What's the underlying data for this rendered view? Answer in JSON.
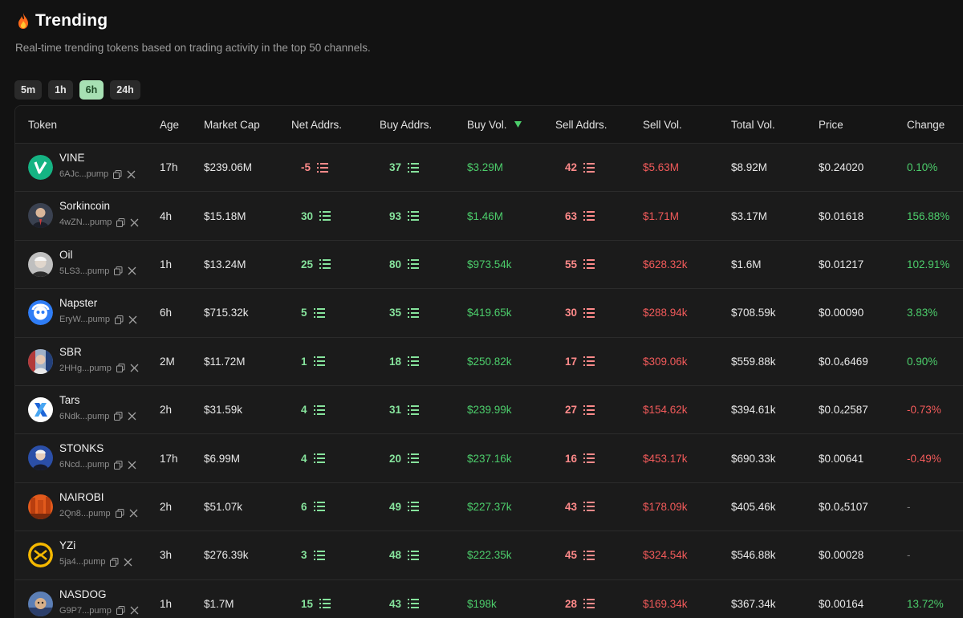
{
  "header": {
    "title": "Trending",
    "subtitle": "Real-time trending tokens based on trading activity in the top 50 channels."
  },
  "timeframes": [
    "5m",
    "1h",
    "6h",
    "24h"
  ],
  "active_timeframe": "6h",
  "columns": {
    "token": "Token",
    "age": "Age",
    "market_cap": "Market Cap",
    "net_addrs": "Net Addrs.",
    "buy_addrs": "Buy Addrs.",
    "buy_vol": "Buy Vol.",
    "sell_addrs": "Sell Addrs.",
    "sell_vol": "Sell Vol.",
    "total_vol": "Total Vol.",
    "price": "Price",
    "change": "Change"
  },
  "rows": [
    {
      "name": "VINE",
      "addr": "6AJc...pump",
      "age": "17h",
      "mcap": "$239.06M",
      "net": "-5",
      "net_neg": true,
      "buy_addrs": "37",
      "buy_vol": "$3.29M",
      "sell_addrs": "42",
      "sell_vol": "$5.63M",
      "total_vol": "$8.92M",
      "price": "$0.24020",
      "change": "0.10%",
      "change_dir": "up",
      "logo": "vine"
    },
    {
      "name": "Sorkincoin",
      "addr": "4wZN...pump",
      "age": "4h",
      "mcap": "$15.18M",
      "net": "30",
      "net_neg": false,
      "buy_addrs": "93",
      "buy_vol": "$1.46M",
      "sell_addrs": "63",
      "sell_vol": "$1.71M",
      "total_vol": "$3.17M",
      "price": "$0.01618",
      "change": "156.88%",
      "change_dir": "up",
      "logo": "person-dark"
    },
    {
      "name": "Oil",
      "addr": "5LS3...pump",
      "age": "1h",
      "mcap": "$13.24M",
      "net": "25",
      "net_neg": false,
      "buy_addrs": "80",
      "buy_vol": "$973.54k",
      "sell_addrs": "55",
      "sell_vol": "$628.32k",
      "total_vol": "$1.6M",
      "price": "$0.01217",
      "change": "102.91%",
      "change_dir": "up",
      "logo": "person-gray"
    },
    {
      "name": "Napster",
      "addr": "EryW...pump",
      "age": "6h",
      "mcap": "$715.32k",
      "net": "5",
      "net_neg": false,
      "buy_addrs": "35",
      "buy_vol": "$419.65k",
      "sell_addrs": "30",
      "sell_vol": "$288.94k",
      "total_vol": "$708.59k",
      "price": "$0.00090",
      "change": "3.83%",
      "change_dir": "up",
      "logo": "napster"
    },
    {
      "name": "SBR",
      "addr": "2HHg...pump",
      "age": "2M",
      "mcap": "$11.72M",
      "net": "1",
      "net_neg": false,
      "buy_addrs": "18",
      "buy_vol": "$250.82k",
      "sell_addrs": "17",
      "sell_vol": "$309.06k",
      "total_vol": "$559.88k",
      "price": "$0.0₄6469",
      "change": "0.90%",
      "change_dir": "up",
      "logo": "person-flag"
    },
    {
      "name": "Tars",
      "addr": "6Ndk...pump",
      "age": "2h",
      "mcap": "$31.59k",
      "net": "4",
      "net_neg": false,
      "buy_addrs": "31",
      "buy_vol": "$239.99k",
      "sell_addrs": "27",
      "sell_vol": "$154.62k",
      "total_vol": "$394.61k",
      "price": "$0.0₄2587",
      "change": "-0.73%",
      "change_dir": "down",
      "logo": "tars"
    },
    {
      "name": "STONKS",
      "addr": "6Ncd...pump",
      "age": "17h",
      "mcap": "$6.99M",
      "net": "4",
      "net_neg": false,
      "buy_addrs": "20",
      "buy_vol": "$237.16k",
      "sell_addrs": "16",
      "sell_vol": "$453.17k",
      "total_vol": "$690.33k",
      "price": "$0.00641",
      "change": "-0.49%",
      "change_dir": "down",
      "logo": "person-blue"
    },
    {
      "name": "NAIROBI",
      "addr": "2Qn8...pump",
      "age": "2h",
      "mcap": "$51.07k",
      "net": "6",
      "net_neg": false,
      "buy_addrs": "49",
      "buy_vol": "$227.37k",
      "sell_addrs": "43",
      "sell_vol": "$178.09k",
      "total_vol": "$405.46k",
      "price": "$0.0₄5107",
      "change": "-",
      "change_dir": "none",
      "logo": "nairobi"
    },
    {
      "name": "YZi",
      "addr": "5ja4...pump",
      "age": "3h",
      "mcap": "$276.39k",
      "net": "3",
      "net_neg": false,
      "buy_addrs": "48",
      "buy_vol": "$222.35k",
      "sell_addrs": "45",
      "sell_vol": "$324.54k",
      "total_vol": "$546.88k",
      "price": "$0.00028",
      "change": "-",
      "change_dir": "none",
      "logo": "yzi"
    },
    {
      "name": "NASDOG",
      "addr": "G9P7...pump",
      "age": "1h",
      "mcap": "$1.7M",
      "net": "15",
      "net_neg": false,
      "buy_addrs": "43",
      "buy_vol": "$198k",
      "sell_addrs": "28",
      "sell_vol": "$169.34k",
      "total_vol": "$367.34k",
      "price": "$0.00164",
      "change": "13.72%",
      "change_dir": "up",
      "logo": "nasdog"
    }
  ],
  "colors": {
    "background": "#121212",
    "table_bg": "#1b1b1b",
    "active_tab": "#a7e0b3",
    "green": "#4ccd6b",
    "red": "#f15a5a",
    "accent_green": "#86e39c",
    "accent_red": "#ff8a8a"
  },
  "icons": {
    "title": "flame-icon",
    "copy": "copy-icon",
    "x": "x-logo-icon",
    "list": "list-icon",
    "sort": "sort-desc-icon"
  }
}
